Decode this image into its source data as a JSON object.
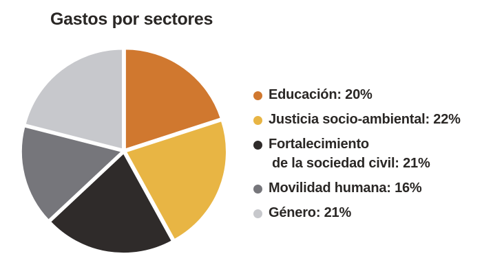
{
  "chart_data": {
    "type": "pie",
    "title": "Gastos por sectores",
    "slices": [
      {
        "label": "Educación",
        "value": 20,
        "display": "Educación: 20%",
        "color": "#d0782f"
      },
      {
        "label": "Justicia socio-ambiental",
        "value": 22,
        "display": "Justicia socio-ambiental: 22%",
        "color": "#e8b544"
      },
      {
        "label": "Fortalecimiento de la sociedad civil",
        "value": 21,
        "display_line1": "Fortalecimiento",
        "display_line2": "de la sociedad civil: 21%",
        "color": "#2f2b2a"
      },
      {
        "label": "Movilidad humana",
        "value": 16,
        "display": "Movilidad humana: 16%",
        "color": "#76767b"
      },
      {
        "label": "Género",
        "value": 21,
        "display": "Género: 21%",
        "color": "#c7c8cc"
      }
    ],
    "legend_position": "right"
  }
}
